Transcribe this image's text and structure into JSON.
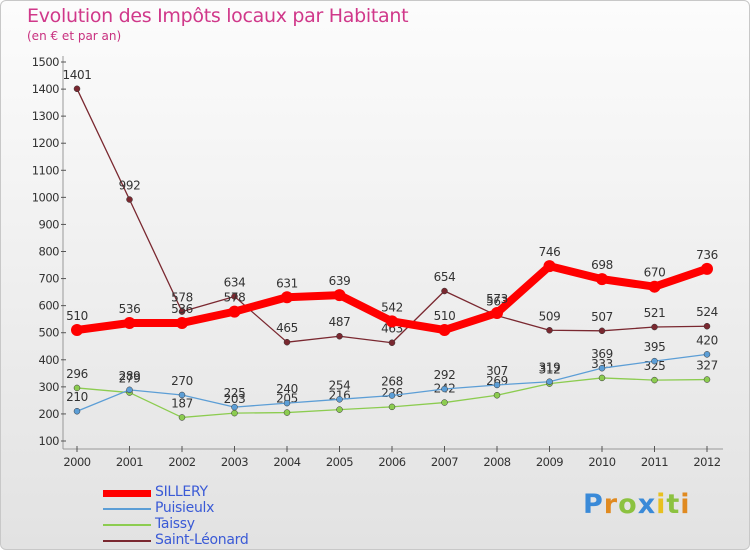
{
  "chart_data": {
    "type": "line",
    "title": "Evolution des Impôts locaux par Habitant",
    "subtitle": "(en € et par an)",
    "xlabel": "",
    "ylabel": "",
    "categories": [
      "2000",
      "2001",
      "2002",
      "2003",
      "2004",
      "2005",
      "2006",
      "2007",
      "2008",
      "2009",
      "2010",
      "2011",
      "2012"
    ],
    "ylim": [
      100,
      1500
    ],
    "yticks": [
      100,
      200,
      300,
      400,
      500,
      600,
      700,
      800,
      900,
      1000,
      1100,
      1200,
      1300,
      1400,
      1500
    ],
    "grid": false,
    "series": [
      {
        "name": "Saint-Léonard",
        "color": "#7a2830",
        "values": [
          1401,
          992,
          578,
          634,
          465,
          487,
          463,
          654,
          563,
          509,
          507,
          521,
          524
        ]
      },
      {
        "name": "Taissy",
        "color": "#8ccc50",
        "values": [
          296,
          279,
          187,
          203,
          205,
          216,
          226,
          242,
          269,
          312,
          333,
          325,
          327
        ]
      },
      {
        "name": "Puisieulx",
        "color": "#5c9ed6",
        "values": [
          210,
          289,
          270,
          225,
          240,
          254,
          268,
          292,
          307,
          319,
          369,
          395,
          420
        ]
      },
      {
        "name": "SILLERY",
        "color": "#ff0000",
        "values": [
          510,
          536,
          536,
          578,
          631,
          639,
          542,
          510,
          573,
          746,
          698,
          670,
          736
        ]
      }
    ],
    "legend": [
      "SILLERY",
      "Puisieulx",
      "Taissy",
      "Saint-Léonard"
    ],
    "legend_position": "bottom-left"
  },
  "logo": {
    "text": "Proxiti",
    "letters": [
      "P",
      "r",
      "o",
      "x",
      "i",
      "t",
      "i"
    ]
  }
}
